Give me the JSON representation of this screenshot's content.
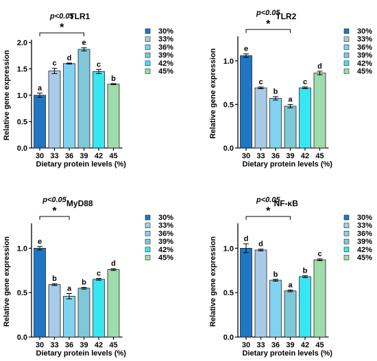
{
  "colors": [
    "#1f77c4",
    "#a8cbe8",
    "#7fd3f0",
    "#7ec8d8",
    "#37e6f2",
    "#9edcab"
  ],
  "chart_data": [
    {
      "type": "bar",
      "title": "TLR1",
      "xlabel": "Dietary protein levels (%)",
      "ylabel": "Relative gene expression",
      "categories": [
        "30",
        "33",
        "36",
        "39",
        "42",
        "45"
      ],
      "values": [
        1.0,
        1.46,
        1.6,
        1.87,
        1.45,
        1.21
      ],
      "errors": [
        0.04,
        0.05,
        0.01,
        0.03,
        0.04,
        0.01
      ],
      "letters": [
        "a",
        "c",
        "d",
        "e",
        "c",
        "b"
      ],
      "ylim": [
        0,
        2.0
      ],
      "yticks": [
        "0.0",
        "0.5",
        "1.0",
        "1.5",
        "2.0"
      ],
      "significance": {
        "label": "p<0.05",
        "marker": "*",
        "from": "30",
        "to": "39"
      },
      "legend": [
        "30%",
        "33%",
        "36%",
        "39%",
        "42%",
        "45%"
      ]
    },
    {
      "type": "bar",
      "title": "TLR2",
      "xlabel": "Dietary protein levels (%)",
      "ylabel": "Relative gene expression",
      "categories": [
        "30",
        "33",
        "36",
        "39",
        "42",
        "45"
      ],
      "values": [
        1.06,
        0.69,
        0.57,
        0.48,
        0.69,
        0.86
      ],
      "errors": [
        0.02,
        0.01,
        0.02,
        0.02,
        0.01,
        0.02
      ],
      "letters": [
        "e",
        "c",
        "b",
        "a",
        "c",
        "d"
      ],
      "ylim": [
        0,
        1.25
      ],
      "yticks": [
        "0.0",
        "0.5",
        "1.0"
      ],
      "significance": {
        "label": "p<0.05",
        "marker": "*",
        "from": "30",
        "to": "39"
      },
      "legend": [
        "30%",
        "33%",
        "36%",
        "39%",
        "42%",
        "45%"
      ]
    },
    {
      "type": "bar",
      "title": "MyD88",
      "xlabel": "Dietary protein levels (%)",
      "ylabel": "Relative gene expression",
      "categories": [
        "30",
        "33",
        "36",
        "39",
        "42",
        "45"
      ],
      "values": [
        1.0,
        0.59,
        0.46,
        0.55,
        0.65,
        0.76
      ],
      "errors": [
        0.02,
        0.01,
        0.03,
        0.01,
        0.01,
        0.01
      ],
      "letters": [
        "e",
        "b",
        "a",
        "b",
        "c",
        "d"
      ],
      "ylim": [
        0,
        1.25
      ],
      "yticks": [
        "0.0",
        "0.5",
        "1.0"
      ],
      "significance": {
        "label": "p<0.05",
        "marker": "*",
        "from": "30",
        "to": "36"
      },
      "legend": [
        "30%",
        "33%",
        "36%",
        "39%",
        "42%",
        "45%"
      ]
    },
    {
      "type": "bar",
      "title": "NF-κB",
      "xlabel": "Dietary protein levels (%)",
      "ylabel": "Relative gene expression",
      "categories": [
        "30",
        "33",
        "36",
        "39",
        "42",
        "45"
      ],
      "values": [
        1.0,
        0.98,
        0.64,
        0.52,
        0.68,
        0.87
      ],
      "errors": [
        0.05,
        0.01,
        0.01,
        0.01,
        0.01,
        0.01
      ],
      "letters": [
        "d",
        "d",
        "b",
        "a",
        "b",
        "c"
      ],
      "ylim": [
        0,
        1.25
      ],
      "yticks": [
        "0.0",
        "0.5",
        "1.0"
      ],
      "significance": {
        "label": "p<0.05",
        "marker": "*",
        "from": "30",
        "to": "39"
      },
      "legend": [
        "30%",
        "33%",
        "36%",
        "39%",
        "42%",
        "45%"
      ]
    }
  ]
}
